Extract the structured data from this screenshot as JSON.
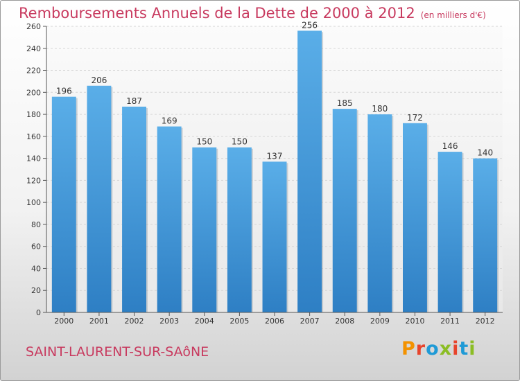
{
  "header": {
    "title": "Remboursements Annuels de la Dette de 2000 à 2012",
    "unit": "(en milliers d'€)"
  },
  "footer": {
    "town": "SAINT-LAURENT-SUR-SAôNE",
    "logo": "Proxiti",
    "logo_colors": [
      "#f39200",
      "#e7442c",
      "#1f9ad6",
      "#8bbd24",
      "#e7442c",
      "#1f9ad6",
      "#8bbd24"
    ]
  },
  "colors": {
    "bar_top": "#5aaee8",
    "bar_bottom": "#2e7fc4",
    "title": "#c83a5f"
  },
  "chart_data": {
    "type": "bar",
    "categories": [
      "2000",
      "2001",
      "2002",
      "2003",
      "2004",
      "2005",
      "2006",
      "2007",
      "2008",
      "2009",
      "2010",
      "2011",
      "2012"
    ],
    "values": [
      196,
      206,
      187,
      169,
      150,
      150,
      137,
      256,
      185,
      180,
      172,
      146,
      140
    ],
    "title": "Remboursements Annuels de la Dette de 2000 à 2012",
    "xlabel": "",
    "ylabel": "",
    "ylim": [
      0,
      260
    ],
    "yticks": [
      0,
      20,
      40,
      60,
      80,
      100,
      120,
      140,
      160,
      180,
      200,
      220,
      240,
      260
    ],
    "grid": true,
    "data_labels": true
  }
}
